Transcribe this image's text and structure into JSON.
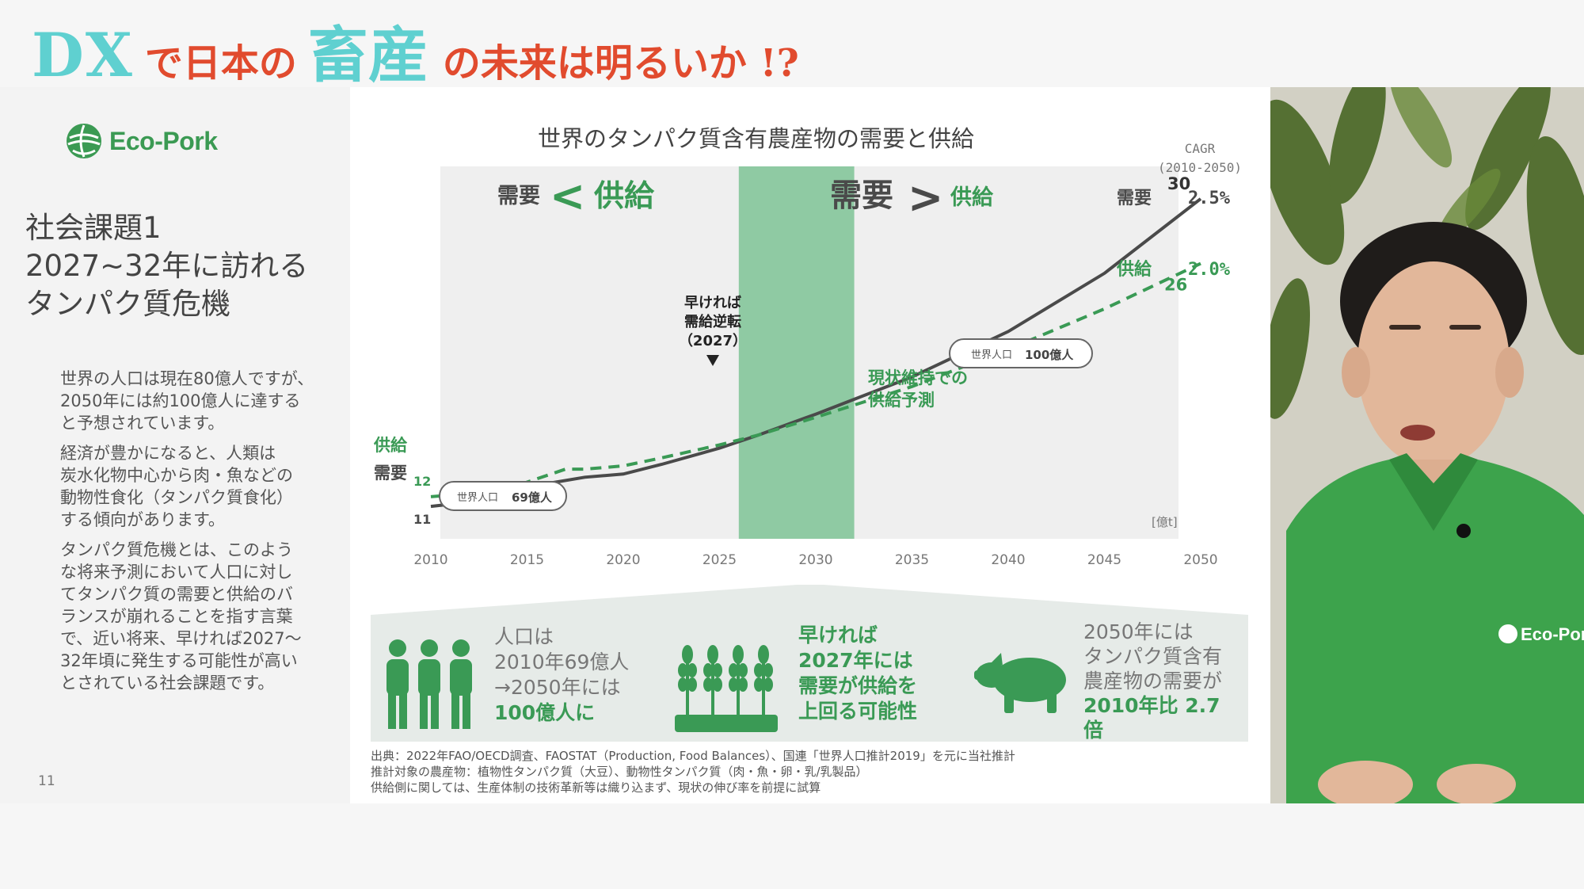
{
  "banner": {
    "title_dx": "DX",
    "title_part1": "で日本の",
    "title_big": "畜産",
    "title_part2": "の未来は明るいか !?"
  },
  "left": {
    "logo_text": "Eco-Pork",
    "heading_lines": [
      "社会課題1",
      "2027~32年に訪れる",
      "タンパク質危機"
    ],
    "para1": [
      "世界の人口は現在80億人ですが、",
      "2050年には約100億人に達する",
      "と予想されています。"
    ],
    "para2": [
      "経済が豊かになると、人類は",
      "炭水化物中心から肉・魚などの",
      "動物性食化（タンパク質食化）",
      "する傾向があります。"
    ],
    "para3": [
      "タンパク質危機とは、このよう",
      "な将来予測において人口に対し",
      "てタンパク質の需要と供給のバ",
      "ランスが崩れることを指す言葉",
      "で、近い将来、早ければ2027〜",
      "32年頃に発生する可能性が高い",
      "とされている社会課題です。"
    ],
    "page_number": "11"
  },
  "slide": {
    "chart_title": "世界のタンパク質含有農産物の需要と供給",
    "cagr_label": "CAGR",
    "cagr_period": "(2010-2050)",
    "cagr_demand_label": "需要",
    "cagr_demand_value": "2.5%",
    "cagr_supply_label": "供給",
    "cagr_supply_value": "2.0%",
    "left_region_demand": "需要",
    "left_region_symbol": "<",
    "left_region_supply": "供給",
    "right_region_demand": "需要",
    "right_region_symbol": ">",
    "right_region_supply": "供給",
    "annotation_line1": "早ければ",
    "annotation_line2": "需給逆転",
    "annotation_line3": "（2027）",
    "forecast_line1": "現状維持での",
    "forecast_line2": "供給予測",
    "pop_start_label": "世界人口",
    "pop_start_value": "69億人",
    "pop_end_label": "世界人口",
    "pop_end_value": "100億人",
    "start_supply_label": "供給",
    "start_demand_label": "需要",
    "unit_label": "[億t]",
    "band": {
      "col1": [
        "人口は",
        "2010年69億人",
        "→2050年には",
        "100億人に"
      ],
      "col2": [
        "早ければ",
        "2027年には",
        "需要が供給を",
        "上回る可能性"
      ],
      "col3": [
        "2050年には",
        "タンパク質含有",
        "農産物の需要が",
        "2010年比 2.7",
        "倍"
      ]
    },
    "sources": [
      "出典：2022年FAO/OECD調査、FAOSTAT（Production, Food Balances）、国連「世界人口推計2019」を元に当社推計",
      "推計対象の農産物：植物性タンパク質（大豆）、動物性タンパク質（肉・魚・卵・乳/乳製品）",
      "供給側に関しては、生産体制の技術革新等は織り込まず、現状の伸び率を前提に試算"
    ]
  },
  "speaker": {
    "shirt_logo": "Eco-Por"
  },
  "colors": {
    "accent_teal": "#5fd0d0",
    "accent_red": "#e14b2e",
    "brand_green": "#3a9a55",
    "demand_gray": "#4a4a4a",
    "highlight_band": "#8fcaa3"
  },
  "chart_data": {
    "type": "line",
    "title": "世界のタンパク質含有農産物の需要と供給",
    "xlabel": "",
    "ylabel": "[億t]",
    "x_ticks": [
      2010,
      2015,
      2020,
      2025,
      2030,
      2035,
      2040,
      2045,
      2050
    ],
    "ylim": [
      9,
      32
    ],
    "highlight_range": [
      2026,
      2032
    ],
    "series": [
      {
        "name": "需要",
        "style": "solid",
        "color": "#4a4a4a",
        "points": [
          [
            2010,
            11
          ],
          [
            2013,
            11.4
          ],
          [
            2015,
            12.1
          ],
          [
            2016,
            12.4
          ],
          [
            2018,
            12.8
          ],
          [
            2020,
            13.0
          ],
          [
            2022,
            13.6
          ],
          [
            2025,
            14.6
          ],
          [
            2027,
            15.4
          ],
          [
            2030,
            16.7
          ],
          [
            2035,
            19.0
          ],
          [
            2040,
            21.8
          ],
          [
            2045,
            25.4
          ],
          [
            2050,
            30
          ]
        ]
      },
      {
        "name": "供給",
        "style": "dashed",
        "color": "#3a9a55",
        "points": [
          [
            2010,
            11.6
          ],
          [
            2012,
            11.8
          ],
          [
            2013,
            11.7
          ],
          [
            2015,
            12.5
          ],
          [
            2016,
            12.9
          ],
          [
            2017,
            13.3
          ],
          [
            2018,
            13.3
          ],
          [
            2020,
            13.5
          ],
          [
            2022,
            14.0
          ],
          [
            2025,
            14.8
          ],
          [
            2027,
            15.4
          ],
          [
            2030,
            16.5
          ],
          [
            2035,
            18.4
          ],
          [
            2040,
            20.7
          ],
          [
            2045,
            23.2
          ],
          [
            2050,
            26
          ]
        ]
      }
    ],
    "data_labels": {
      "supply_start": "12",
      "demand_start": "11",
      "demand_end": "30",
      "supply_end": "26"
    }
  }
}
